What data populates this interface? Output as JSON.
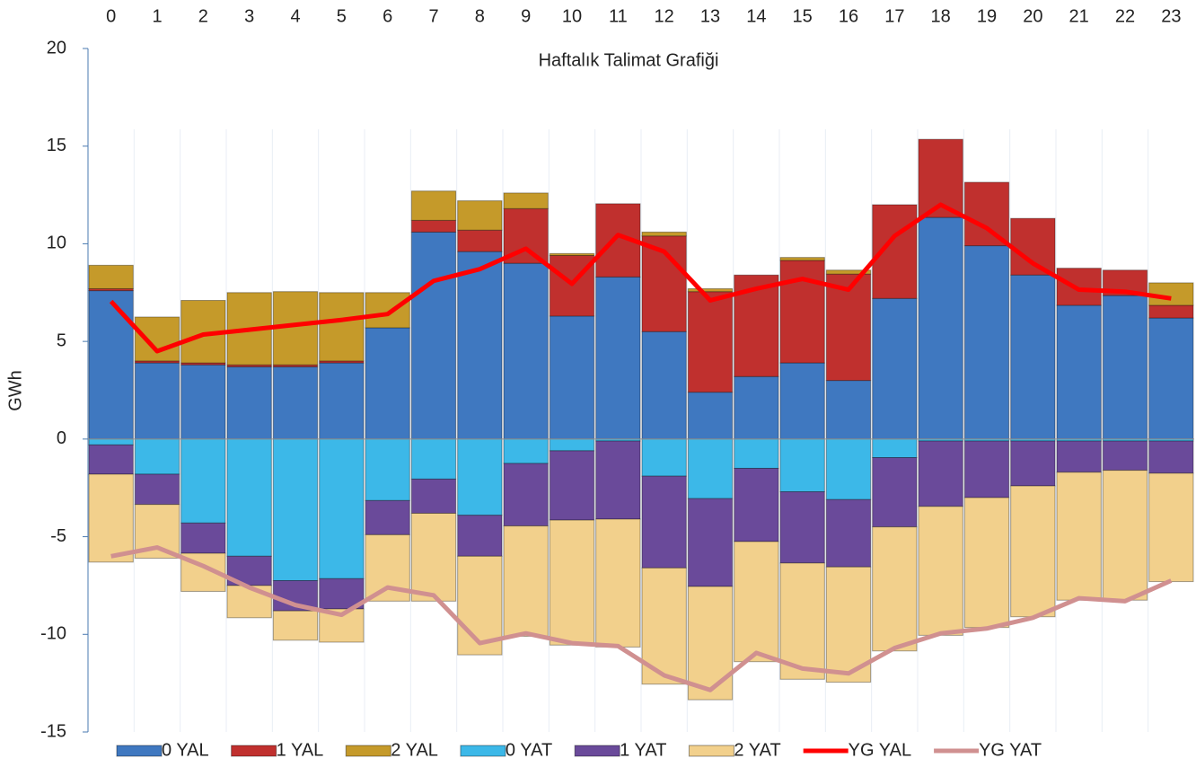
{
  "chart_data": {
    "type": "stacked_bar_line",
    "title": "Haftalık Talimat Grafiği",
    "y_label": "GWh",
    "categories": [
      "0",
      "1",
      "2",
      "3",
      "4",
      "5",
      "6",
      "7",
      "8",
      "9",
      "10",
      "11",
      "12",
      "13",
      "14",
      "15",
      "16",
      "17",
      "18",
      "19",
      "20",
      "21",
      "22",
      "23"
    ],
    "ylim": [
      -15,
      20
    ],
    "yticks": [
      -15,
      -10,
      -5,
      0,
      5,
      10,
      15,
      20
    ],
    "grid": true,
    "legend": "bottom",
    "series": [
      {
        "name": "0 YAL",
        "color": "#3f78c0",
        "kind": "bar",
        "values": [
          7.6,
          3.9,
          3.8,
          3.7,
          3.7,
          3.9,
          5.7,
          10.6,
          9.6,
          9.0,
          6.3,
          8.3,
          5.5,
          2.4,
          3.2,
          3.9,
          3.0,
          7.2,
          11.35,
          9.9,
          8.4,
          6.85,
          7.35,
          6.2
        ]
      },
      {
        "name": "1 YAL",
        "color": "#c0302e",
        "kind": "bar",
        "values": [
          0.1,
          0.1,
          0.1,
          0.1,
          0.1,
          0.1,
          0,
          0.6,
          1.1,
          2.8,
          3.1,
          3.75,
          4.9,
          5.15,
          5.2,
          5.25,
          5.45,
          4.8,
          4.0,
          3.25,
          2.9,
          1.9,
          1.3,
          0.65
        ]
      },
      {
        "name": "2 YAL",
        "color": "#c59a2a",
        "kind": "bar",
        "values": [
          1.2,
          2.25,
          3.2,
          3.7,
          3.75,
          3.5,
          1.8,
          1.5,
          1.5,
          0.8,
          0.1,
          0,
          0.2,
          0.15,
          0,
          0.15,
          0.2,
          0,
          0,
          0,
          0,
          0,
          0,
          1.15
        ]
      },
      {
        "name": "0 YAT",
        "color": "#3cb8e8",
        "kind": "bar",
        "values": [
          -0.3,
          -1.8,
          -4.3,
          -6.0,
          -7.25,
          -7.15,
          -3.15,
          -2.05,
          -3.9,
          -1.25,
          -0.6,
          -0.1,
          -1.9,
          -3.05,
          -1.5,
          -2.7,
          -3.1,
          -0.95,
          -0.1,
          -0.1,
          -0.1,
          -0.1,
          -0.1,
          -0.1
        ]
      },
      {
        "name": "1 YAT",
        "color": "#6a4a9a",
        "kind": "bar",
        "values": [
          -1.5,
          -1.55,
          -1.55,
          -1.5,
          -1.55,
          -1.55,
          -1.75,
          -1.75,
          -2.1,
          -3.2,
          -3.55,
          -4.0,
          -4.7,
          -4.5,
          -3.75,
          -3.65,
          -3.45,
          -3.55,
          -3.35,
          -2.9,
          -2.3,
          -1.6,
          -1.5,
          -1.65
        ]
      },
      {
        "name": "2 YAT",
        "color": "#f2d08c",
        "kind": "bar",
        "values": [
          -4.5,
          -2.75,
          -1.95,
          -1.65,
          -1.5,
          -1.7,
          -3.4,
          -4.5,
          -5.05,
          -5.65,
          -6.4,
          -6.55,
          -5.95,
          -5.8,
          -6.15,
          -5.95,
          -5.9,
          -6.35,
          -6.6,
          -6.65,
          -6.7,
          -6.55,
          -6.65,
          -5.55
        ]
      },
      {
        "name": "YG YAL",
        "color": "#ff0000",
        "kind": "line",
        "values": [
          7.05,
          4.5,
          5.35,
          5.6,
          5.85,
          6.1,
          6.4,
          8.1,
          8.7,
          9.75,
          7.95,
          10.45,
          9.6,
          7.1,
          7.7,
          8.2,
          7.65,
          10.4,
          12.0,
          10.8,
          9.0,
          7.65,
          7.55,
          7.2
        ]
      },
      {
        "name": "YG YAT",
        "color": "#d09090",
        "kind": "line",
        "values": [
          -6.0,
          -5.55,
          -6.5,
          -7.6,
          -8.5,
          -9.0,
          -7.6,
          -8.0,
          -10.45,
          -9.95,
          -10.45,
          -10.6,
          -12.1,
          -12.85,
          -10.95,
          -11.75,
          -12.0,
          -10.7,
          -9.95,
          -9.7,
          -9.15,
          -8.15,
          -8.3,
          -7.25
        ]
      }
    ]
  }
}
